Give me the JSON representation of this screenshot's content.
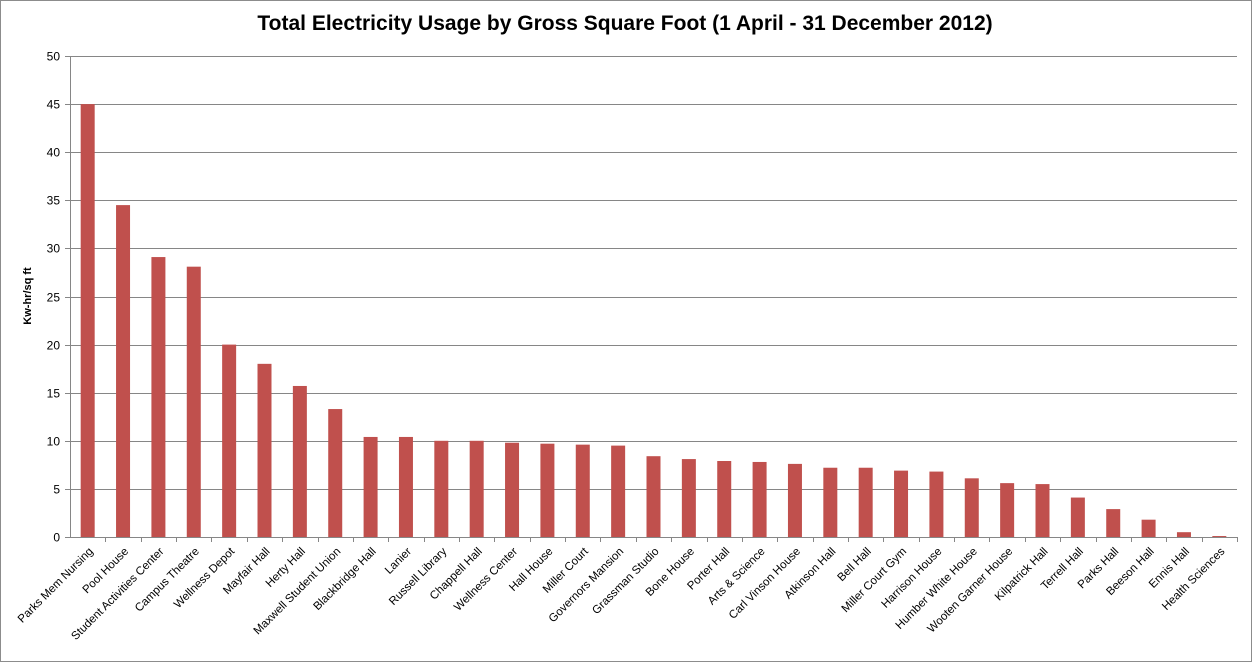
{
  "chart_data": {
    "type": "bar",
    "title": "Total Electricity Usage by Gross Square Foot (1 April - 31 December 2012)",
    "xlabel": "",
    "ylabel": "Kw-hr/sq ft",
    "ylim": [
      0,
      50
    ],
    "ytick_step": 5,
    "grid": true,
    "legend": "none",
    "bar_color": "#c0504d",
    "categories": [
      "Parks Mem Nursing",
      "Pool House",
      "Student Activities Center",
      "Campus Theatre",
      "Wellness Depot",
      "Mayfair Hall",
      "Herty Hall",
      "Maxwell Student Union",
      "Blackbridge Hall",
      "Lanier",
      "Russell Library",
      "Chappell Hall",
      "Wellness Center",
      "Hall House",
      "Miller Court",
      "Governors Mansion",
      "Grassman Studio",
      "Bone House",
      "Porter Hall",
      "Arts & Science",
      "Carl Vinson House",
      "Atkinson Hall",
      "Bell Hall",
      "Miller Court Gym",
      "Harrison House",
      "Humber White House",
      "Wooten Garner House",
      "Kilpatrick Hall",
      "Terrell Hall",
      "Parks Hall",
      "Beeson Hall",
      "Ennis Hall",
      "Health Sciences"
    ],
    "values": [
      45.0,
      34.5,
      29.1,
      28.1,
      20.0,
      18.0,
      15.7,
      13.3,
      10.4,
      10.4,
      10.0,
      10.0,
      9.8,
      9.7,
      9.6,
      9.5,
      8.4,
      8.1,
      7.9,
      7.8,
      7.6,
      7.2,
      7.2,
      6.9,
      6.8,
      6.1,
      5.6,
      5.5,
      4.1,
      2.9,
      1.8,
      0.5,
      0.1
    ]
  }
}
